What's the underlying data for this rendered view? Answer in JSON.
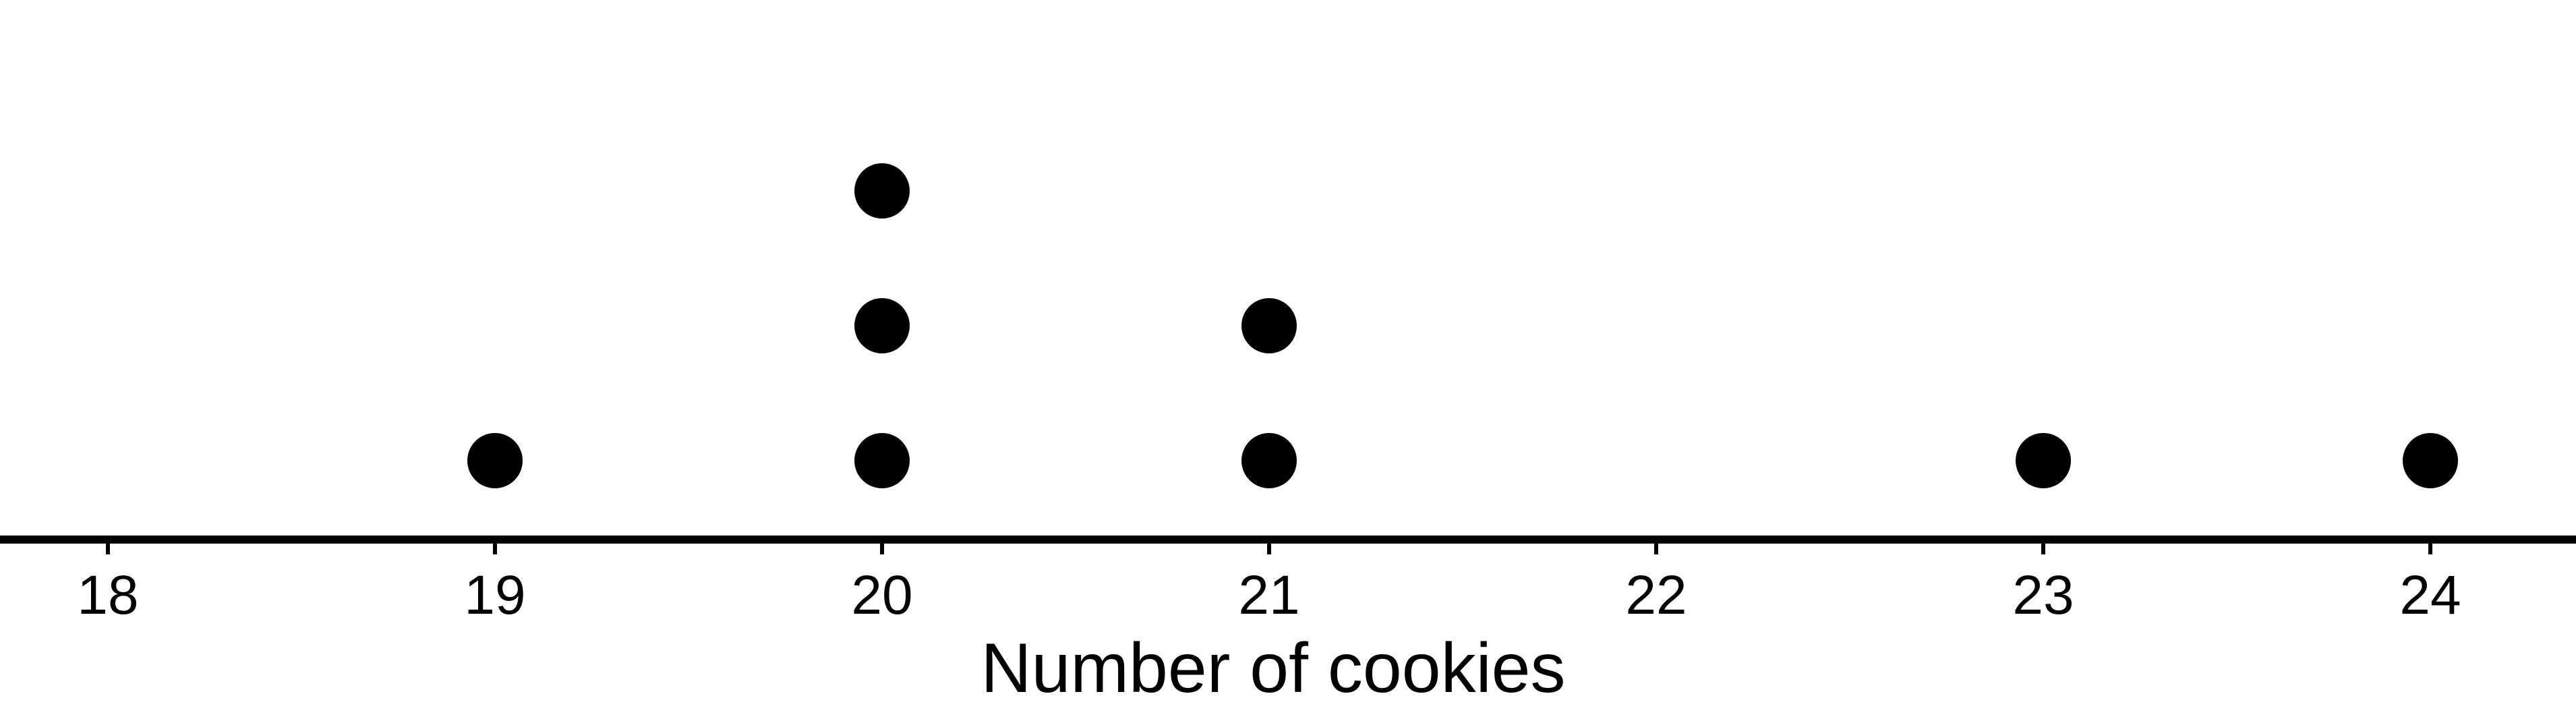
{
  "chart_data": {
    "type": "dot",
    "xlabel": "Number of cookies",
    "xlim": [
      18,
      24
    ],
    "ticks": [
      18,
      19,
      20,
      21,
      22,
      23,
      24
    ],
    "tick_labels": [
      "18",
      "19",
      "20",
      "21",
      "22",
      "23",
      "24"
    ],
    "points": [
      19,
      20,
      20,
      20,
      21,
      21,
      23,
      24
    ],
    "counts": [
      {
        "x": 18,
        "count": 0
      },
      {
        "x": 19,
        "count": 1
      },
      {
        "x": 20,
        "count": 3
      },
      {
        "x": 21,
        "count": 2
      },
      {
        "x": 22,
        "count": 0
      },
      {
        "x": 23,
        "count": 1
      },
      {
        "x": 24,
        "count": 1
      }
    ],
    "grid": false,
    "colors": {
      "dots": "#000000",
      "axis": "#000000",
      "background": "#ffffff"
    }
  }
}
